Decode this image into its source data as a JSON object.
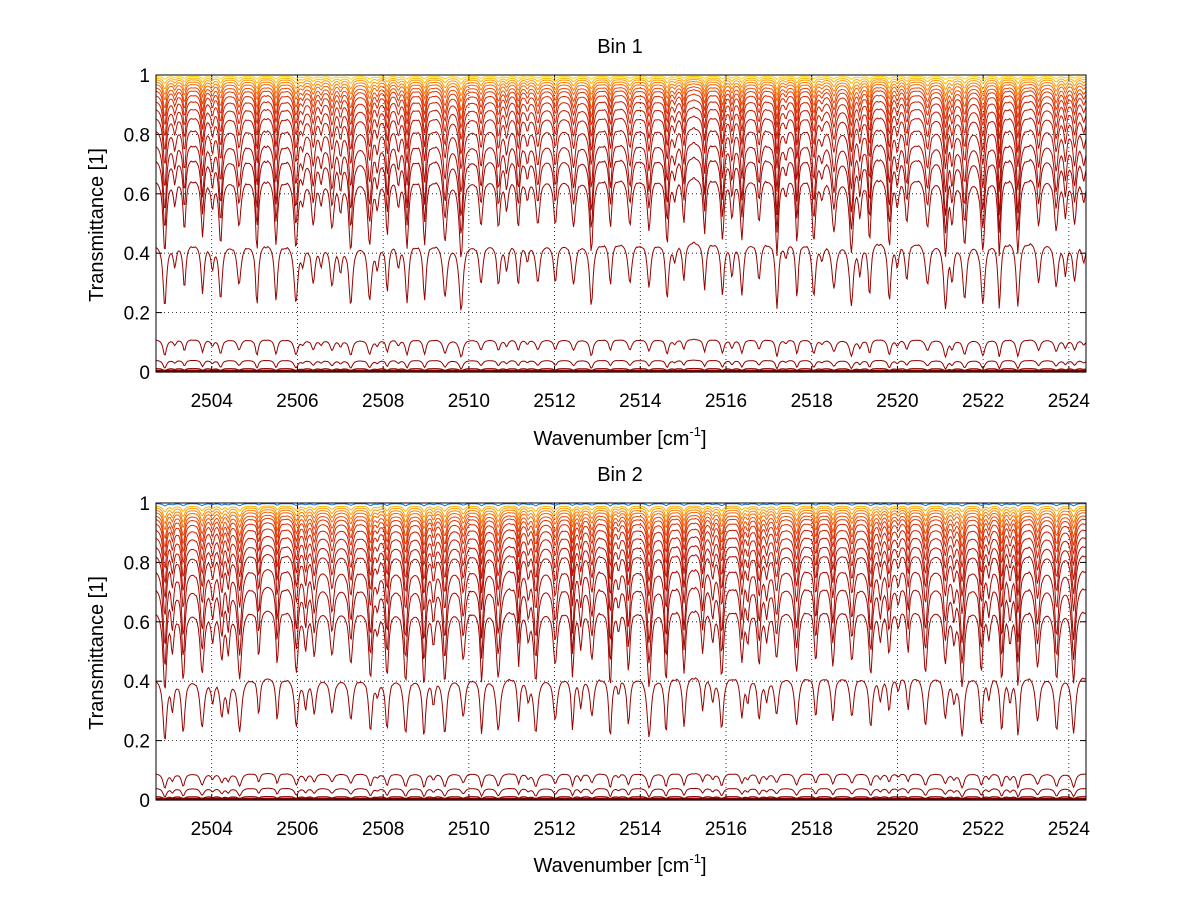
{
  "chart_data": [
    {
      "type": "line",
      "title": "Bin 1",
      "xlabel": "Wavenumber [cm",
      "xlabel_sup": "-1",
      "xlabel_close": "]",
      "ylabel": "Transmittance [1]",
      "xlim": [
        2502.7,
        2524.4
      ],
      "ylim": [
        0,
        1
      ],
      "grid": true,
      "xticks": [
        2504,
        2506,
        2508,
        2510,
        2512,
        2514,
        2516,
        2518,
        2520,
        2522,
        2524
      ],
      "xtick_labels": [
        "2504",
        "2506",
        "2508",
        "2510",
        "2512",
        "2514",
        "2516",
        "2518",
        "2520",
        "2522",
        "2524"
      ],
      "yticks": [
        0,
        0.2,
        0.4,
        0.6,
        0.8,
        1
      ],
      "ytick_labels": [
        "0",
        "0.2",
        "0.4",
        "0.6",
        "0.8",
        "1"
      ],
      "line_spacing_cm1": 0.433,
      "line_offset_cm1": 2502.92,
      "series_count": 20,
      "series_baselines": [
        0.995,
        0.99,
        0.985,
        0.978,
        0.97,
        0.96,
        0.95,
        0.935,
        0.915,
        0.89,
        0.86,
        0.82,
        0.77,
        0.72,
        0.65,
        0.43,
        0.11,
        0.04,
        0.012,
        0.003
      ],
      "series_min_values": [
        0.985,
        0.97,
        0.95,
        0.93,
        0.91,
        0.88,
        0.85,
        0.82,
        0.78,
        0.73,
        0.68,
        0.6,
        0.52,
        0.46,
        0.38,
        0.2,
        0.05,
        0.01,
        0.003,
        0.0
      ],
      "colors": [
        "#fdd000",
        "#fcb500",
        "#fb9a00",
        "#f97f00",
        "#f26400",
        "#ea4a00",
        "#e03600",
        "#d62800",
        "#cc1d00",
        "#c21500",
        "#b80f00",
        "#b00a00",
        "#a80700",
        "#a00500",
        "#9a0400",
        "#950300",
        "#900200",
        "#8b0100",
        "#860000",
        "#800000"
      ]
    },
    {
      "type": "line",
      "title": "Bin 2",
      "xlabel": "Wavenumber [cm",
      "xlabel_sup": "-1",
      "xlabel_close": "]",
      "ylabel": "Transmittance [1]",
      "xlim": [
        2502.7,
        2524.4
      ],
      "ylim": [
        0,
        1
      ],
      "grid": true,
      "xticks": [
        2504,
        2506,
        2508,
        2510,
        2512,
        2514,
        2516,
        2518,
        2520,
        2522,
        2524
      ],
      "xtick_labels": [
        "2504",
        "2506",
        "2508",
        "2510",
        "2512",
        "2514",
        "2516",
        "2518",
        "2520",
        "2522",
        "2524"
      ],
      "yticks": [
        0,
        0.2,
        0.4,
        0.6,
        0.8,
        1
      ],
      "ytick_labels": [
        "0",
        "0.2",
        "0.4",
        "0.6",
        "0.8",
        "1"
      ],
      "line_spacing_cm1": 0.433,
      "line_offset_cm1": 2502.92,
      "series_count": 20,
      "series_baselines": [
        0.998,
        0.99,
        0.985,
        0.978,
        0.97,
        0.96,
        0.95,
        0.935,
        0.915,
        0.89,
        0.86,
        0.83,
        0.78,
        0.72,
        0.64,
        0.41,
        0.09,
        0.04,
        0.012,
        0.003
      ],
      "series_min_values": [
        0.99,
        0.97,
        0.95,
        0.93,
        0.91,
        0.88,
        0.85,
        0.82,
        0.78,
        0.73,
        0.68,
        0.62,
        0.52,
        0.45,
        0.37,
        0.2,
        0.04,
        0.01,
        0.003,
        0.0
      ],
      "colors": [
        "#1f6fd0",
        "#fcb500",
        "#fb9a00",
        "#f97f00",
        "#f26400",
        "#ea4a00",
        "#e03600",
        "#d62800",
        "#cc1d00",
        "#c21500",
        "#b80f00",
        "#b00a00",
        "#a80700",
        "#a00500",
        "#9a0400",
        "#950300",
        "#900200",
        "#8b0100",
        "#860000",
        "#800000"
      ]
    }
  ]
}
